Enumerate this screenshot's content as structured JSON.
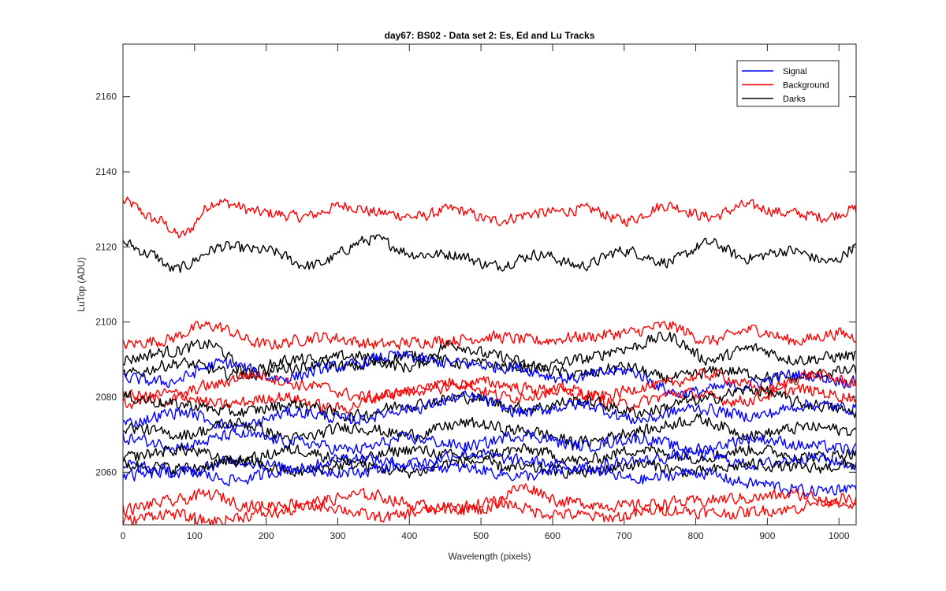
{
  "chart_data": {
    "type": "line",
    "title": "day67: BS02 - Data set 2: Es, Ed and Lu Tracks",
    "xlabel": "Wavelength (pixels)",
    "ylabel": "LuTop (ADU)",
    "xlim": [
      0,
      1024
    ],
    "ylim": [
      2046,
      2174
    ],
    "xticks": [
      0,
      100,
      200,
      300,
      400,
      500,
      600,
      700,
      800,
      900,
      1000
    ],
    "yticks": [
      2060,
      2080,
      2100,
      2120,
      2140,
      2160
    ],
    "grid": false,
    "legend_position": "top-right",
    "legend": [
      {
        "label": "Signal",
        "color": "#0000ff"
      },
      {
        "label": "Background",
        "color": "#ff0000"
      },
      {
        "label": "Darks",
        "color": "#000000"
      }
    ],
    "series": [
      {
        "color": "#ff0000",
        "noise": 1.4,
        "x": [
          0,
          50,
          80,
          130,
          200,
          250,
          310,
          360,
          410,
          460,
          520,
          580,
          650,
          700,
          760,
          820,
          870,
          930,
          980,
          1024
        ],
        "y": [
          2132,
          2127,
          2123,
          2132,
          2129,
          2128,
          2131,
          2129,
          2128,
          2130,
          2127,
          2129,
          2130,
          2127,
          2131,
          2128,
          2131,
          2129,
          2128,
          2130
        ]
      },
      {
        "color": "#000000",
        "noise": 1.4,
        "x": [
          0,
          40,
          70,
          140,
          200,
          260,
          350,
          410,
          460,
          520,
          580,
          640,
          700,
          760,
          820,
          870,
          930,
          990,
          1024
        ],
        "y": [
          2121,
          2118,
          2114,
          2120,
          2119,
          2115,
          2122,
          2118,
          2118,
          2115,
          2118,
          2115,
          2119,
          2116,
          2121,
          2117,
          2119,
          2116,
          2120
        ]
      },
      {
        "color": "#ff0000",
        "noise": 1.5,
        "x": [
          0,
          50,
          120,
          200,
          280,
          360,
          440,
          520,
          580,
          640,
          700,
          760,
          820,
          880,
          940,
          1000,
          1024
        ],
        "y": [
          2094,
          2095,
          2099,
          2094,
          2096,
          2094,
          2095,
          2096,
          2095,
          2096,
          2097,
          2099,
          2095,
          2098,
          2095,
          2097,
          2096
        ]
      },
      {
        "color": "#000000",
        "noise": 1.5,
        "x": [
          0,
          60,
          120,
          180,
          240,
          320,
          400,
          460,
          520,
          580,
          640,
          700,
          760,
          820,
          880,
          940,
          1024
        ],
        "y": [
          2090,
          2092,
          2094,
          2086,
          2088,
          2091,
          2088,
          2094,
          2091,
          2088,
          2090,
          2093,
          2096,
          2090,
          2093,
          2090,
          2091
        ]
      },
      {
        "color": "#000000",
        "noise": 1.5,
        "x": [
          0,
          80,
          160,
          240,
          320,
          400,
          480,
          560,
          640,
          700,
          760,
          840,
          920,
          1024
        ],
        "y": [
          2086,
          2089,
          2086,
          2090,
          2088,
          2091,
          2089,
          2088,
          2086,
          2088,
          2085,
          2087,
          2085,
          2087
        ]
      },
      {
        "color": "#0000ff",
        "noise": 1.5,
        "x": [
          0,
          60,
          140,
          220,
          300,
          380,
          460,
          540,
          620,
          700,
          780,
          860,
          940,
          1024
        ],
        "y": [
          2085,
          2084,
          2089,
          2085,
          2088,
          2091,
          2089,
          2088,
          2085,
          2087,
          2081,
          2083,
          2086,
          2084
        ]
      },
      {
        "color": "#ff0000",
        "noise": 1.5,
        "x": [
          0,
          60,
          120,
          180,
          260,
          340,
          420,
          500,
          580,
          660,
          740,
          820,
          900,
          960,
          1024
        ],
        "y": [
          2081,
          2079,
          2083,
          2086,
          2083,
          2080,
          2082,
          2084,
          2082,
          2080,
          2083,
          2086,
          2082,
          2086,
          2084
        ]
      },
      {
        "color": "#ff0000",
        "noise": 1.5,
        "x": [
          0,
          60,
          140,
          220,
          300,
          380,
          460,
          540,
          620,
          700,
          780,
          860,
          940,
          1024
        ],
        "y": [
          2078,
          2081,
          2078,
          2080,
          2077,
          2081,
          2084,
          2080,
          2082,
          2078,
          2081,
          2079,
          2082,
          2080
        ]
      },
      {
        "color": "#000000",
        "noise": 1.5,
        "x": [
          0,
          80,
          160,
          240,
          320,
          400,
          480,
          560,
          640,
          720,
          800,
          880,
          960,
          1024
        ],
        "y": [
          2080,
          2078,
          2076,
          2078,
          2075,
          2078,
          2080,
          2077,
          2079,
          2076,
          2079,
          2082,
          2078,
          2076
        ]
      },
      {
        "color": "#0000ff",
        "noise": 1.5,
        "x": [
          0,
          80,
          160,
          240,
          320,
          400,
          480,
          560,
          640,
          720,
          800,
          880,
          960,
          1024
        ],
        "y": [
          2073,
          2076,
          2072,
          2076,
          2074,
          2077,
          2080,
          2076,
          2078,
          2074,
          2077,
          2075,
          2078,
          2077
        ]
      },
      {
        "color": "#000000",
        "noise": 1.5,
        "x": [
          0,
          80,
          160,
          240,
          320,
          400,
          480,
          560,
          640,
          720,
          800,
          880,
          960,
          1024
        ],
        "y": [
          2072,
          2070,
          2073,
          2069,
          2072,
          2070,
          2073,
          2071,
          2068,
          2071,
          2074,
          2070,
          2072,
          2071
        ]
      },
      {
        "color": "#0000ff",
        "noise": 1.5,
        "x": [
          0,
          80,
          160,
          240,
          320,
          400,
          480,
          560,
          640,
          720,
          800,
          880,
          960,
          1024
        ],
        "y": [
          2069,
          2067,
          2070,
          2068,
          2066,
          2069,
          2067,
          2070,
          2067,
          2069,
          2066,
          2069,
          2067,
          2066
        ]
      },
      {
        "color": "#000000",
        "noise": 1.5,
        "x": [
          0,
          80,
          160,
          240,
          320,
          400,
          480,
          560,
          640,
          720,
          800,
          880,
          960,
          1024
        ],
        "y": [
          2064,
          2066,
          2063,
          2066,
          2063,
          2066,
          2064,
          2066,
          2063,
          2066,
          2064,
          2066,
          2064,
          2065
        ]
      },
      {
        "color": "#0000ff",
        "noise": 1.5,
        "x": [
          0,
          80,
          160,
          240,
          320,
          400,
          480,
          560,
          640,
          720,
          800,
          880,
          960,
          1024
        ],
        "y": [
          2062,
          2060,
          2063,
          2061,
          2064,
          2062,
          2065,
          2063,
          2061,
          2063,
          2065,
          2062,
          2064,
          2062
        ]
      },
      {
        "color": "#000000",
        "noise": 1.5,
        "x": [
          0,
          80,
          160,
          240,
          320,
          400,
          480,
          560,
          640,
          720,
          800,
          880,
          960,
          1024
        ],
        "y": [
          2062,
          2061,
          2063,
          2060,
          2062,
          2060,
          2063,
          2061,
          2060,
          2062,
          2060,
          2062,
          2061,
          2062
        ]
      },
      {
        "color": "#0000ff",
        "noise": 1.5,
        "x": [
          0,
          80,
          160,
          240,
          320,
          400,
          480,
          560,
          640,
          720,
          800,
          880,
          960,
          1024
        ],
        "y": [
          2059,
          2060,
          2058,
          2061,
          2060,
          2062,
          2061,
          2059,
          2061,
          2058,
          2060,
          2057,
          2055,
          2056
        ]
      },
      {
        "color": "#ff0000",
        "noise": 1.5,
        "x": [
          0,
          60,
          120,
          180,
          260,
          340,
          420,
          500,
          560,
          620,
          700,
          780,
          860,
          940,
          1024
        ],
        "y": [
          2050,
          2052,
          2054,
          2051,
          2052,
          2054,
          2051,
          2050,
          2056,
          2052,
          2051,
          2052,
          2053,
          2054,
          2051
        ]
      },
      {
        "color": "#ff0000",
        "noise": 1.5,
        "x": [
          0,
          60,
          120,
          200,
          280,
          360,
          440,
          520,
          600,
          680,
          760,
          840,
          920,
          1000,
          1024
        ],
        "y": [
          2047,
          2049,
          2047,
          2049,
          2051,
          2048,
          2050,
          2052,
          2049,
          2048,
          2050,
          2049,
          2050,
          2053,
          2052
        ]
      }
    ]
  }
}
